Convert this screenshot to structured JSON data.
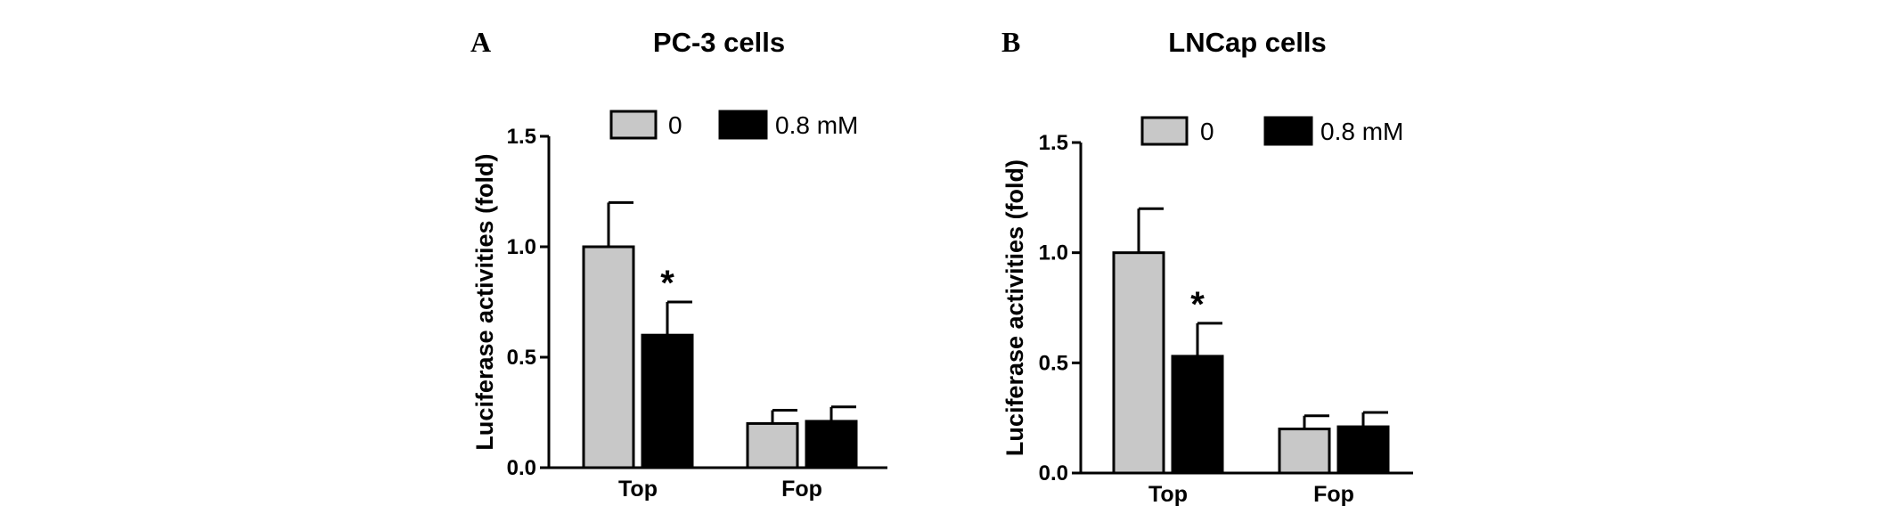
{
  "chart_data": [
    {
      "type": "bar",
      "panel": "A",
      "title": "PC-3 cells",
      "ylabel": "Luciferase activities (fold)",
      "xlabel": "",
      "ylim": [
        0,
        1.5
      ],
      "yticks": [
        "0.0",
        "0.5",
        "1.0",
        "1.5"
      ],
      "categories": [
        "Top",
        "Fop"
      ],
      "legend_position": "top",
      "series": [
        {
          "name": "0",
          "values": [
            1.0,
            0.2
          ],
          "errors": [
            0.2,
            0.06
          ],
          "color": "#c8c8c8"
        },
        {
          "name": "0.8 mM",
          "values": [
            0.6,
            0.21
          ],
          "errors": [
            0.15,
            0.065
          ],
          "color": "#000000"
        }
      ],
      "annotations": [
        {
          "text": "*",
          "category": "Top",
          "series": "0.8 mM"
        }
      ]
    },
    {
      "type": "bar",
      "panel": "B",
      "title": "LNCap cells",
      "ylabel": "Luciferase activities (fold)",
      "xlabel": "",
      "ylim": [
        0,
        1.5
      ],
      "yticks": [
        "0.0",
        "0.5",
        "1.0",
        "1.5"
      ],
      "categories": [
        "Top",
        "Fop"
      ],
      "legend_position": "top",
      "series": [
        {
          "name": "0",
          "values": [
            1.0,
            0.2
          ],
          "errors": [
            0.2,
            0.06
          ],
          "color": "#c8c8c8"
        },
        {
          "name": "0.8 mM",
          "values": [
            0.53,
            0.21
          ],
          "errors": [
            0.15,
            0.065
          ],
          "color": "#000000"
        }
      ],
      "annotations": [
        {
          "text": "*",
          "category": "Top",
          "series": "0.8 mM"
        }
      ]
    }
  ]
}
